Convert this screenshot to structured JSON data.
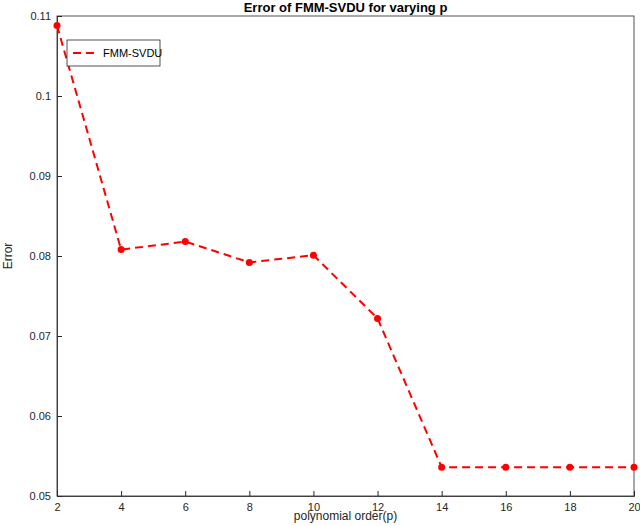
{
  "chart_data": {
    "type": "line",
    "title": "Error of FMM-SVDU for varying p",
    "x_label": "polynomial order(p)",
    "y_label": "Error",
    "x": [
      2,
      4,
      6,
      8,
      10,
      12,
      14,
      16,
      18,
      20
    ],
    "series": [
      {
        "name": "FMM-SVDU",
        "color": "#ff0000",
        "marker": "circle",
        "line_style": "dashed",
        "values": [
          0.1088,
          0.0808,
          0.0818,
          0.0792,
          0.0801,
          0.0722,
          0.0536,
          0.0536,
          0.0536,
          0.0536
        ]
      }
    ],
    "xlim": [
      2,
      20
    ],
    "xticks": [
      2,
      4,
      6,
      8,
      10,
      12,
      14,
      16,
      18,
      20
    ],
    "ylim": [
      0.05,
      0.11
    ],
    "yticks": [
      0.05,
      0.06,
      0.07,
      0.08,
      0.09,
      0.1,
      0.11
    ],
    "grid": false,
    "legend": "upper-left"
  }
}
